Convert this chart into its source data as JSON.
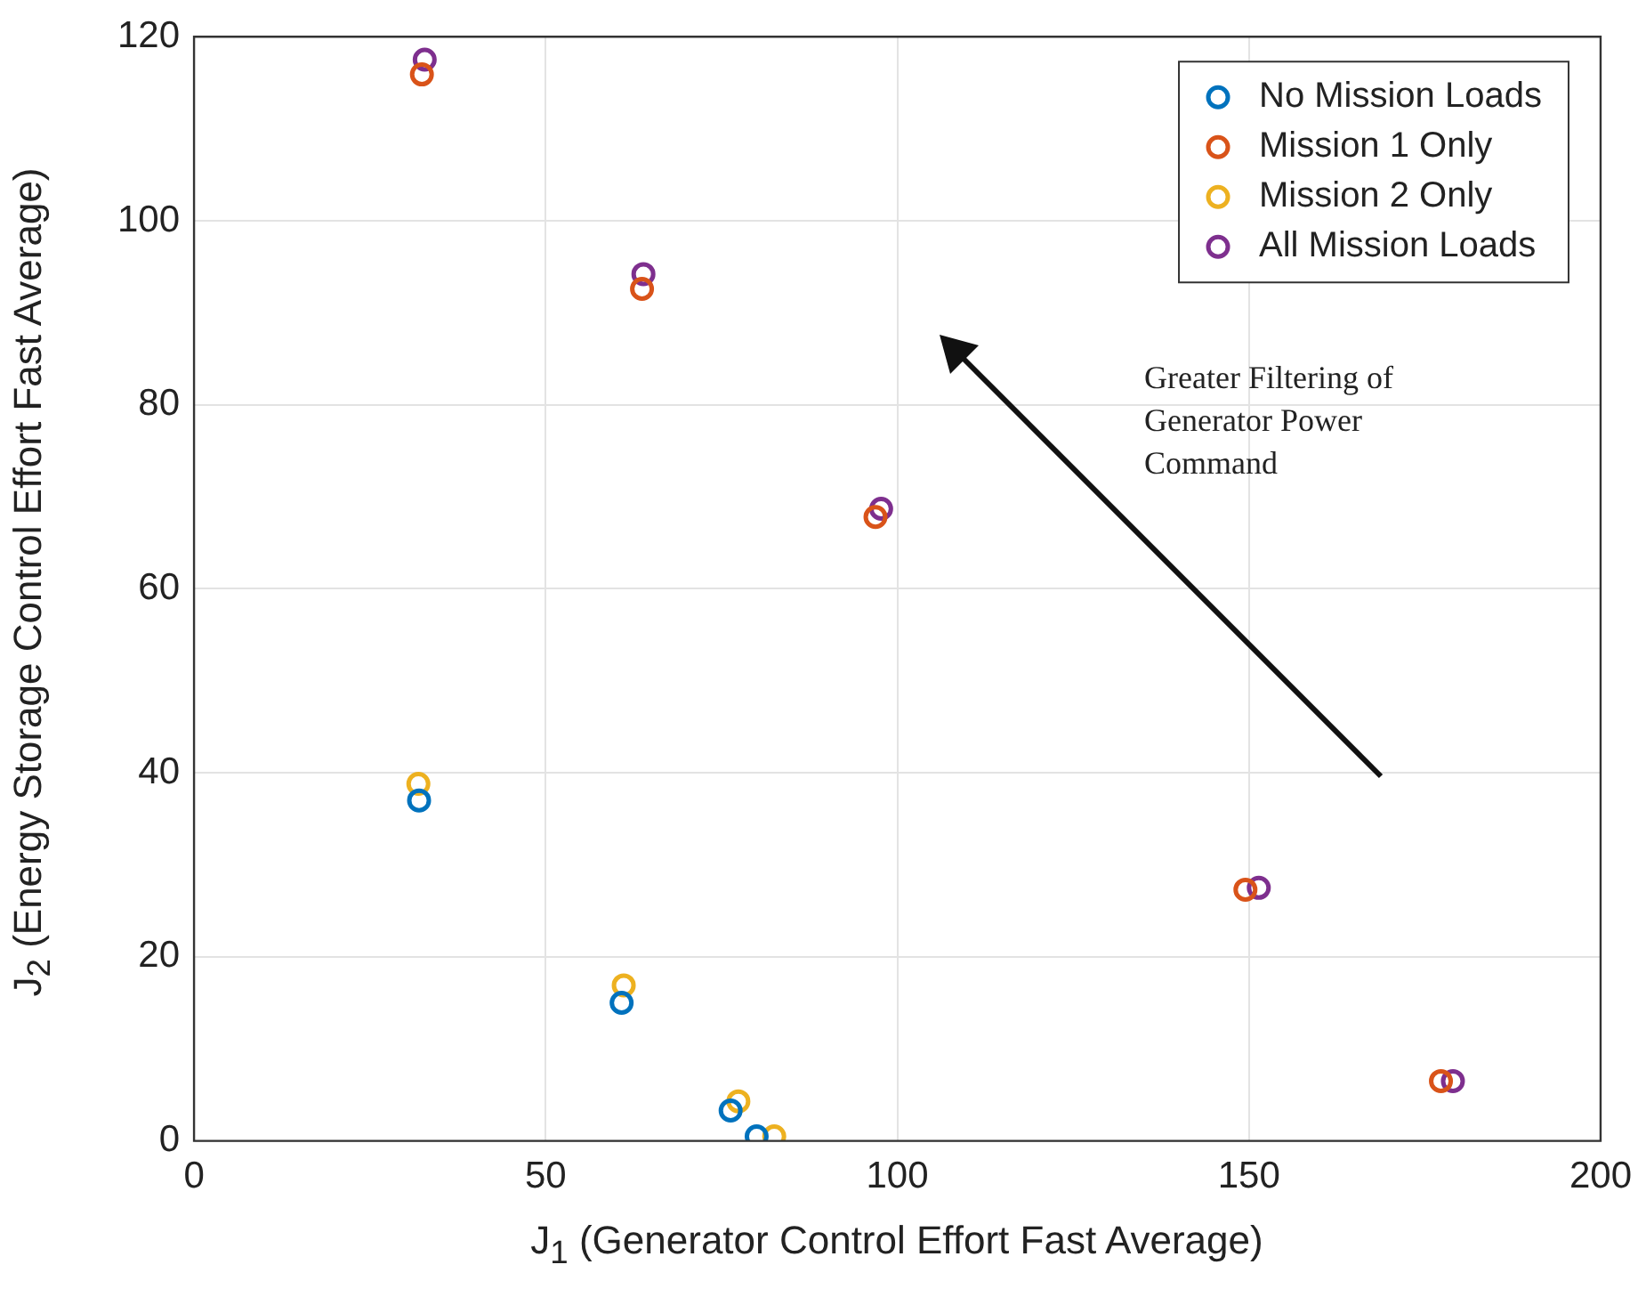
{
  "chart_data": {
    "type": "scatter",
    "xlabel": "J$_{1}$ (Generator Control Effort Fast Average)",
    "ylabel": "J$_{2}$ (Energy Storage Control Effort Fast Average)",
    "xlim": [
      0,
      200
    ],
    "xticks": [
      0,
      50,
      100,
      150,
      200
    ],
    "ylim": [
      0,
      120
    ],
    "yticks": [
      0,
      20,
      40,
      60,
      80,
      100,
      120
    ],
    "grid": true,
    "legend": "top right",
    "marker": "circle",
    "annotations": [
      "Greater Filtering of Generator Power Command"
    ],
    "series": [
      {
        "name": "No Mission Loads",
        "color": "#0072bd",
        "x": [
          32.0,
          60.8,
          76.3,
          80.0
        ],
        "values": [
          37.0,
          15.0,
          3.3,
          0.5
        ]
      },
      {
        "name": "Mission 1 Only",
        "color": "#d95319",
        "x": [
          32.4,
          63.7,
          96.9,
          149.5,
          177.3
        ],
        "values": [
          115.9,
          92.6,
          67.8,
          27.3,
          6.5
        ]
      },
      {
        "name": "Mission 2 Only",
        "color": "#edb120",
        "x": [
          31.9,
          61.1,
          77.4,
          82.5
        ],
        "values": [
          38.8,
          16.9,
          4.3,
          0.5
        ]
      },
      {
        "name": "All Mission Loads",
        "color": "#7e2f8e",
        "x": [
          32.8,
          63.9,
          97.7,
          151.4,
          179.0
        ],
        "values": [
          117.5,
          94.2,
          68.7,
          27.5,
          6.5
        ]
      }
    ]
  }
}
